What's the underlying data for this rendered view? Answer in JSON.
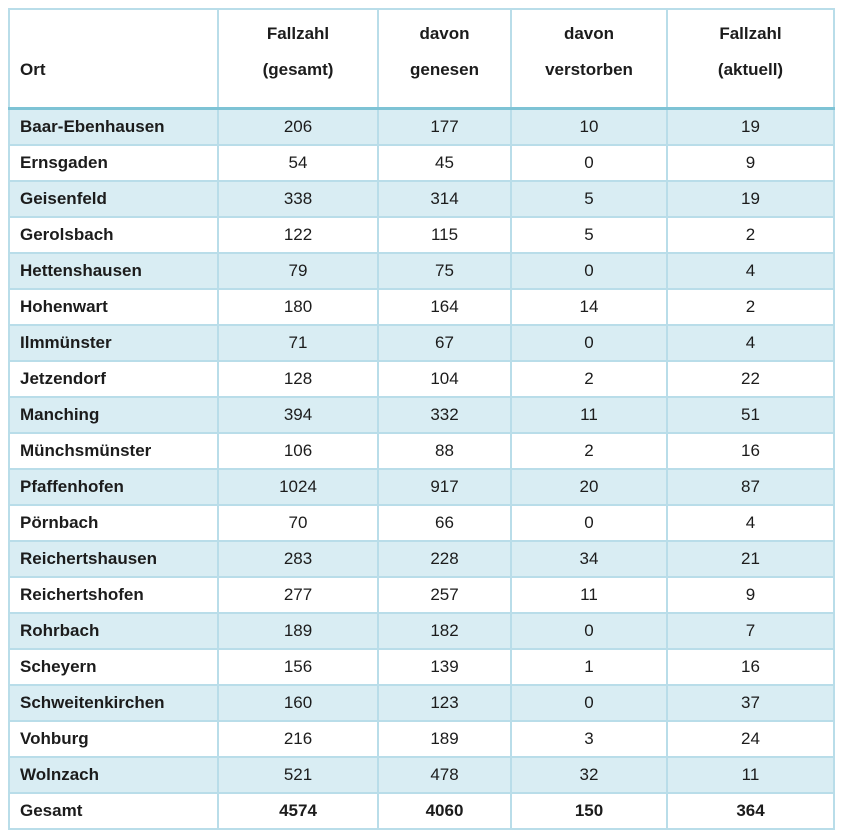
{
  "chart_data": {
    "type": "table",
    "title": "",
    "columns": [
      {
        "id": "ort",
        "line1": "",
        "line2": "Ort"
      },
      {
        "id": "gesamt",
        "line1": "Fallzahl",
        "line2": "(gesamt)"
      },
      {
        "id": "genesen",
        "line1": "davon",
        "line2": "genesen"
      },
      {
        "id": "verstorben",
        "line1": "davon",
        "line2": "verstorben"
      },
      {
        "id": "aktuell",
        "line1": "Fallzahl",
        "line2": "(aktuell)"
      }
    ],
    "rows": [
      [
        "Baar-Ebenhausen",
        206,
        177,
        10,
        19
      ],
      [
        "Ernsgaden",
        54,
        45,
        0,
        9
      ],
      [
        "Geisenfeld",
        338,
        314,
        5,
        19
      ],
      [
        "Gerolsbach",
        122,
        115,
        5,
        2
      ],
      [
        "Hettenshausen",
        79,
        75,
        0,
        4
      ],
      [
        "Hohenwart",
        180,
        164,
        14,
        2
      ],
      [
        "Ilmmünster",
        71,
        67,
        0,
        4
      ],
      [
        "Jetzendorf",
        128,
        104,
        2,
        22
      ],
      [
        "Manching",
        394,
        332,
        11,
        51
      ],
      [
        "Münchsmünster",
        106,
        88,
        2,
        16
      ],
      [
        "Pfaffenhofen",
        1024,
        917,
        20,
        87
      ],
      [
        "Pörnbach",
        70,
        66,
        0,
        4
      ],
      [
        "Reichertshausen",
        283,
        228,
        34,
        21
      ],
      [
        "Reichertshofen",
        277,
        257,
        11,
        9
      ],
      [
        "Rohrbach",
        189,
        182,
        0,
        7
      ],
      [
        "Scheyern",
        156,
        139,
        1,
        16
      ],
      [
        "Schweitenkirchen",
        160,
        123,
        0,
        37
      ],
      [
        "Vohburg",
        216,
        189,
        3,
        24
      ],
      [
        "Wolnzach",
        521,
        478,
        32,
        11
      ]
    ],
    "total_row": [
      "Gesamt",
      4574,
      4060,
      150,
      364
    ],
    "colors": {
      "row_shade": "#d9edf3",
      "cell_border": "#b9dde9",
      "header_separator": "#7ec3d5",
      "outer_border": "#a9d4e1",
      "text": "#1c1c1c"
    }
  }
}
